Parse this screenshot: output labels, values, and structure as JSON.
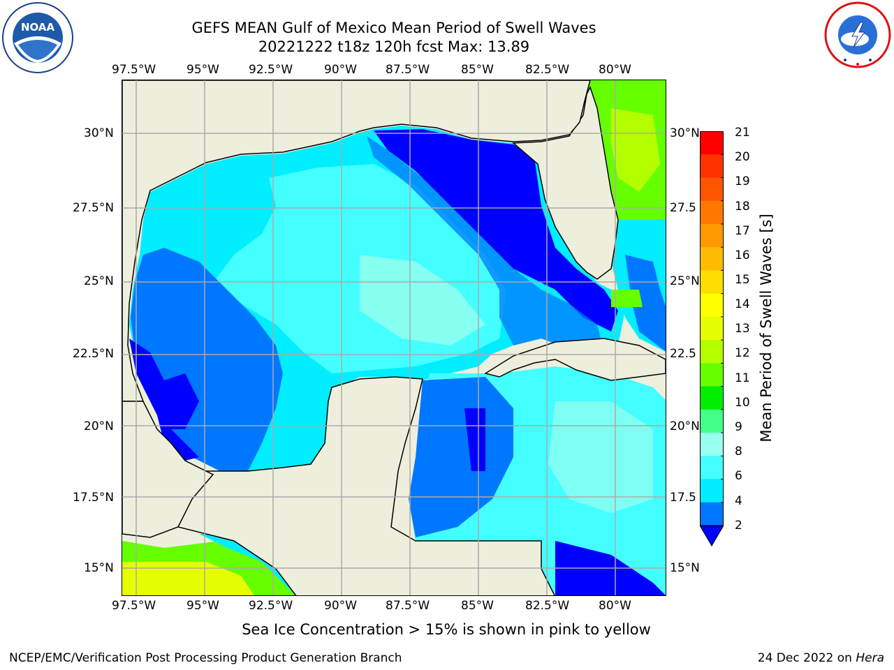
{
  "title": {
    "line1": "GEFS MEAN Gulf of Mexico Mean Period of Swell Waves",
    "line2": "20221222 t18z 120h fcst   Max: 13.89"
  },
  "logos": {
    "left": "noaa-logo",
    "right": "nws-logo"
  },
  "map": {
    "lon_labels": [
      "97.5°W",
      "95°W",
      "92.5°W",
      "90°W",
      "87.5°W",
      "85°W",
      "82.5°W",
      "80°W"
    ],
    "lat_labels_left": [
      "30°N",
      "27.5°N",
      "25°N",
      "22.5°N",
      "20°N",
      "17.5°N",
      "15°N"
    ],
    "lat_labels_right": [
      "30°N",
      "27.5",
      "25°N",
      "22.5",
      "20°N",
      "17.5",
      "15°N"
    ],
    "lon_range": [
      "98°W",
      "78.5°W"
    ],
    "lat_range": [
      "14°N",
      "32°N"
    ],
    "grid": true,
    "land_color": "#eeeedd"
  },
  "colorbar": {
    "label": "Mean Period of Swell Waves [s]",
    "ticks": [
      "21",
      "20",
      "19",
      "18",
      "17",
      "16",
      "15",
      "14",
      "13",
      "12",
      "11",
      "10",
      "9",
      "8",
      "6",
      "4",
      "2"
    ],
    "colors": [
      "#ff0000",
      "#ff3300",
      "#ff5500",
      "#ff7700",
      "#ff9900",
      "#ffbb00",
      "#ffdd00",
      "#ffff00",
      "#e6ff00",
      "#b3ff00",
      "#66ff00",
      "#00ee00",
      "#44ff88",
      "#99ffee",
      "#44ffff",
      "#00eeff",
      "#0077ff",
      "#0000ff"
    ],
    "extend": "min"
  },
  "bottom_note": "Sea Ice Concentration > 15% is shown in pink to yellow",
  "footer": {
    "left": "NCEP/EMC/Verification Post Processing Product Generation Branch",
    "right_prefix": "24 Dec 2022 on ",
    "right_host": "Hera"
  }
}
